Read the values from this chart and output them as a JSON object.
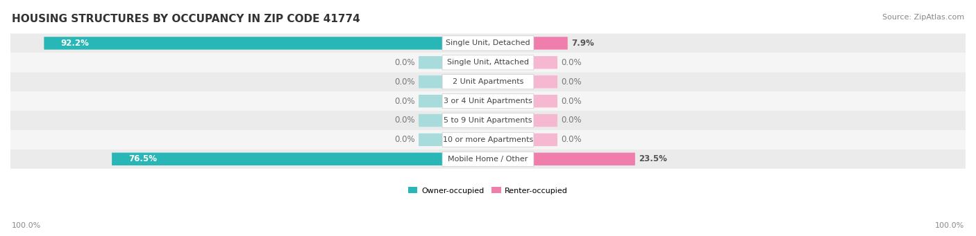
{
  "title": "HOUSING STRUCTURES BY OCCUPANCY IN ZIP CODE 41774",
  "source": "Source: ZipAtlas.com",
  "categories": [
    "Single Unit, Detached",
    "Single Unit, Attached",
    "2 Unit Apartments",
    "3 or 4 Unit Apartments",
    "5 to 9 Unit Apartments",
    "10 or more Apartments",
    "Mobile Home / Other"
  ],
  "owner_values": [
    92.2,
    0.0,
    0.0,
    0.0,
    0.0,
    0.0,
    76.5
  ],
  "renter_values": [
    7.9,
    0.0,
    0.0,
    0.0,
    0.0,
    0.0,
    23.5
  ],
  "owner_color": "#29b6b6",
  "renter_color": "#f07ead",
  "owner_color_light": "#a8dcdc",
  "renter_color_light": "#f5b8d0",
  "row_bg_even": "#ebebeb",
  "row_bg_odd": "#f5f5f5",
  "axis_label_left": "100.0%",
  "axis_label_right": "100.0%",
  "title_fontsize": 11,
  "source_fontsize": 8,
  "bar_label_fontsize": 8.5,
  "category_fontsize": 8,
  "axis_fontsize": 8,
  "legend_fontsize": 8
}
